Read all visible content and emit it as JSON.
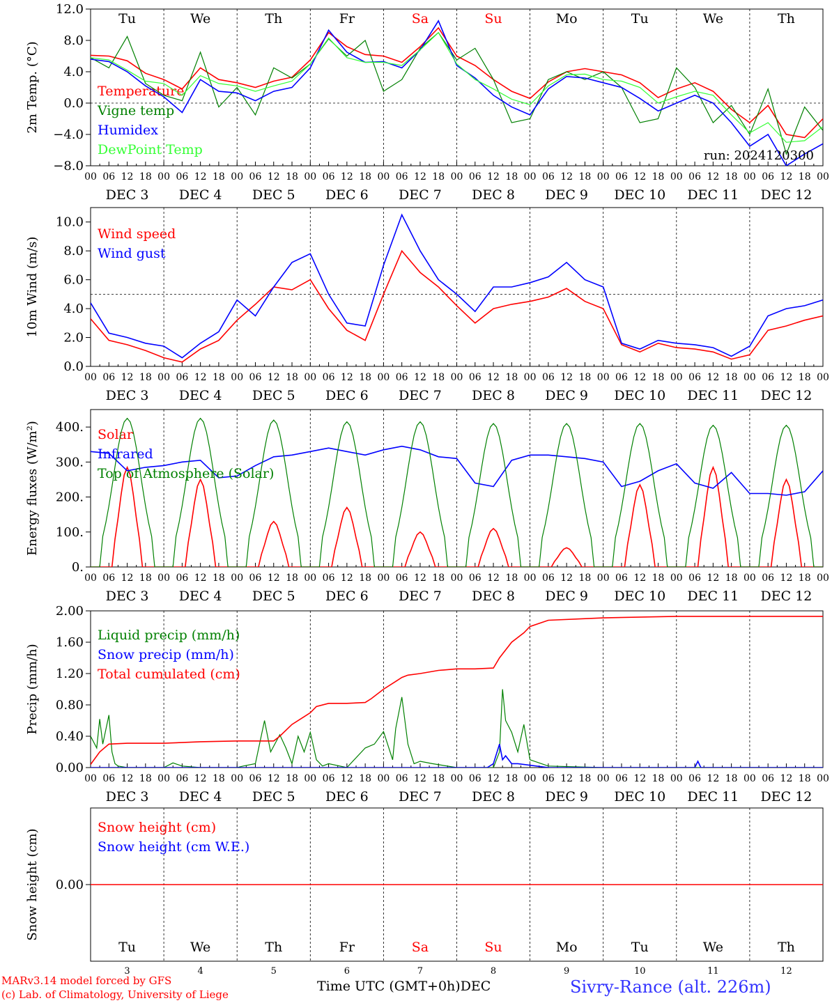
{
  "run_label": "run: 2024120300",
  "x_axis_title": "Time UTC (GMT+0h)",
  "x_axis_title_suffix": "DEC",
  "station": "Sivry-Rance (alt. 226m)",
  "credits": [
    "MARv3.14 model forced by GFS",
    "(c) Lab. of Climatology, University of Liege"
  ],
  "day_names": [
    {
      "label": "Tu",
      "color": "#000000"
    },
    {
      "label": "We",
      "color": "#000000"
    },
    {
      "label": "Th",
      "color": "#000000"
    },
    {
      "label": "Fr",
      "color": "#000000"
    },
    {
      "label": "Sa",
      "color": "#ff0000"
    },
    {
      "label": "Su",
      "color": "#ff0000"
    },
    {
      "label": "Mo",
      "color": "#000000"
    },
    {
      "label": "Tu",
      "color": "#000000"
    },
    {
      "label": "We",
      "color": "#000000"
    },
    {
      "label": "Th",
      "color": "#000000"
    }
  ],
  "date_labels": [
    "DEC  3",
    "DEC  4",
    "DEC  5",
    "DEC  6",
    "DEC  7",
    "DEC  8",
    "DEC  9",
    "DEC 10",
    "DEC 11",
    "DEC 12"
  ],
  "day_numbers": [
    "3",
    "4",
    "5",
    "6",
    "7",
    "8",
    "9",
    "10",
    "11",
    "12"
  ],
  "hour_ticks": [
    "00",
    "06",
    "12",
    "18"
  ],
  "colors": {
    "red": "#ff0000",
    "darkgreen": "#008000",
    "blue": "#0000ff",
    "lightgreen": "#33ff33"
  },
  "chart_data": [
    {
      "id": "temperature",
      "type": "line",
      "ylabel": "2m Temp. (°C)",
      "ylim": [
        -8,
        12
      ],
      "yticks": [
        "12.0",
        "8.0",
        "4.0",
        "0.0",
        "−4.0",
        "−8.0"
      ],
      "ytick_values": [
        12,
        8,
        4,
        0,
        -4,
        -8
      ],
      "x_unit": "hours since Dec 3 00 UTC",
      "x_range": [
        0,
        240
      ],
      "reference_line": 0,
      "series": [
        {
          "name": "Temperature",
          "color": "#ff0000",
          "x": [
            0,
            6,
            12,
            18,
            24,
            30,
            36,
            42,
            48,
            54,
            60,
            66,
            72,
            78,
            84,
            90,
            96,
            102,
            108,
            114,
            120,
            126,
            132,
            138,
            144,
            150,
            156,
            162,
            168,
            174,
            180,
            186,
            192,
            198,
            204,
            210,
            216,
            222,
            228,
            234,
            240
          ],
          "values": [
            6.1,
            6.0,
            5.4,
            3.8,
            3.0,
            1.8,
            4.5,
            3.0,
            2.6,
            2.0,
            2.8,
            3.3,
            5.5,
            9.0,
            7.2,
            6.2,
            6.0,
            5.2,
            7.2,
            9.6,
            6.0,
            4.8,
            3.0,
            1.5,
            0.6,
            2.7,
            4.0,
            4.4,
            4.0,
            3.6,
            2.6,
            0.7,
            1.8,
            2.6,
            1.5,
            -0.8,
            -2.5,
            -0.3,
            -4.0,
            -4.4,
            -2.0
          ]
        },
        {
          "name": "Vigne temp",
          "color": "#008000",
          "x": [
            0,
            6,
            12,
            18,
            24,
            30,
            36,
            42,
            48,
            54,
            60,
            66,
            72,
            78,
            84,
            90,
            96,
            102,
            108,
            114,
            120,
            126,
            132,
            138,
            144,
            150,
            156,
            162,
            168,
            174,
            180,
            186,
            192,
            198,
            204,
            210,
            216,
            222,
            228,
            234,
            240
          ],
          "values": [
            5.8,
            4.5,
            8.5,
            2.5,
            1.0,
            0.3,
            6.5,
            -0.5,
            2.0,
            -1.5,
            4.5,
            3.2,
            5.0,
            8.2,
            6.0,
            8.0,
            1.5,
            3.0,
            7.0,
            9.0,
            5.5,
            7.0,
            3.0,
            -2.5,
            -2.0,
            3.0,
            4.0,
            3.0,
            4.0,
            2.0,
            -2.5,
            -2.0,
            4.5,
            2.0,
            -2.5,
            -0.3,
            -4.0,
            1.8,
            -6.5,
            -0.5,
            -3.5
          ]
        },
        {
          "name": "Humidex",
          "color": "#0000ff",
          "x": [
            0,
            6,
            12,
            18,
            24,
            30,
            36,
            42,
            48,
            54,
            60,
            66,
            72,
            78,
            84,
            90,
            96,
            102,
            108,
            114,
            120,
            126,
            132,
            138,
            144,
            150,
            156,
            162,
            168,
            174,
            180,
            186,
            192,
            198,
            204,
            210,
            216,
            222,
            228,
            234,
            240
          ],
          "values": [
            5.6,
            5.3,
            4.0,
            2.2,
            0.8,
            -1.2,
            3.0,
            1.5,
            1.3,
            0.3,
            1.5,
            2.0,
            4.5,
            9.3,
            6.5,
            5.2,
            5.3,
            4.5,
            6.8,
            10.5,
            4.8,
            3.2,
            1.0,
            -0.5,
            -1.5,
            1.8,
            3.4,
            3.2,
            2.6,
            2.0,
            0.6,
            -1.0,
            0.0,
            1.0,
            0.0,
            -2.5,
            -5.5,
            -4.0,
            -8.0,
            -6.5,
            -5.2
          ]
        },
        {
          "name": "DewPoint Temp",
          "color": "#33ff33",
          "x": [
            0,
            6,
            12,
            18,
            24,
            30,
            36,
            42,
            48,
            54,
            60,
            66,
            72,
            78,
            84,
            90,
            96,
            102,
            108,
            114,
            120,
            126,
            132,
            138,
            144,
            150,
            156,
            162,
            168,
            174,
            180,
            186,
            192,
            198,
            204,
            210,
            216,
            222,
            228,
            234,
            240
          ],
          "values": [
            5.8,
            5.5,
            4.2,
            2.8,
            2.5,
            1.0,
            3.5,
            2.5,
            2.2,
            1.5,
            2.2,
            2.8,
            5.0,
            8.3,
            5.8,
            5.2,
            5.2,
            4.8,
            6.8,
            9.0,
            5.0,
            3.0,
            1.8,
            0.5,
            -0.2,
            2.2,
            3.6,
            3.7,
            3.0,
            2.8,
            2.0,
            0.0,
            0.8,
            1.5,
            1.0,
            -1.5,
            -3.8,
            -2.5,
            -5.0,
            -4.8,
            -3.0
          ]
        }
      ]
    },
    {
      "id": "wind",
      "type": "line",
      "ylabel": "10m Wind (m/s)",
      "ylim": [
        0,
        11
      ],
      "yticks": [
        "10.0",
        "8.0",
        "6.0",
        "4.0",
        "2.0",
        "0.0"
      ],
      "ytick_values": [
        10,
        8,
        6,
        4,
        2,
        0
      ],
      "x_range": [
        0,
        240
      ],
      "reference_line": 5,
      "series": [
        {
          "name": "Wind speed",
          "color": "#ff0000",
          "x": [
            0,
            6,
            12,
            18,
            24,
            30,
            36,
            42,
            48,
            54,
            60,
            66,
            72,
            78,
            84,
            90,
            96,
            102,
            108,
            114,
            120,
            126,
            132,
            138,
            144,
            150,
            156,
            162,
            168,
            174,
            180,
            186,
            192,
            198,
            204,
            210,
            216,
            222,
            228,
            234,
            240
          ],
          "values": [
            3.3,
            1.8,
            1.5,
            1.1,
            0.6,
            0.3,
            1.2,
            1.8,
            3.2,
            4.3,
            5.5,
            5.3,
            6.0,
            4.0,
            2.5,
            1.8,
            5.0,
            8.0,
            6.5,
            5.5,
            4.2,
            3.0,
            4.0,
            4.3,
            4.5,
            4.8,
            5.4,
            4.5,
            4.0,
            1.5,
            1.0,
            1.6,
            1.3,
            1.2,
            1.0,
            0.5,
            0.8,
            2.5,
            2.8,
            3.2,
            3.5
          ]
        },
        {
          "name": "Wind gust",
          "color": "#0000ff",
          "x": [
            0,
            6,
            12,
            18,
            24,
            30,
            36,
            42,
            48,
            54,
            60,
            66,
            72,
            78,
            84,
            90,
            96,
            102,
            108,
            114,
            120,
            126,
            132,
            138,
            144,
            150,
            156,
            162,
            168,
            174,
            180,
            186,
            192,
            198,
            204,
            210,
            216,
            222,
            228,
            234,
            240
          ],
          "values": [
            4.4,
            2.3,
            2.0,
            1.6,
            1.4,
            0.6,
            1.6,
            2.4,
            4.6,
            3.5,
            5.5,
            7.2,
            7.8,
            5.0,
            3.0,
            2.8,
            7.0,
            10.5,
            8.0,
            6.0,
            5.0,
            3.8,
            5.5,
            5.5,
            5.8,
            6.2,
            7.2,
            6.0,
            5.5,
            1.6,
            1.2,
            1.8,
            1.6,
            1.5,
            1.3,
            0.7,
            1.4,
            3.5,
            4.0,
            4.2,
            4.6
          ]
        }
      ]
    },
    {
      "id": "energy",
      "type": "line",
      "ylabel": "Energy fluxes (W/m²)",
      "ylim": [
        0,
        450
      ],
      "yticks": [
        "400.",
        "300.",
        "200.",
        "100.",
        "0."
      ],
      "ytick_values": [
        400,
        300,
        200,
        100,
        0
      ],
      "x_range": [
        0,
        240
      ],
      "series": [
        {
          "name": "Solar",
          "color": "#ff0000",
          "peak_hour": 12,
          "day_peaks": [
            285,
            250,
            130,
            170,
            100,
            110,
            55,
            235,
            285,
            250
          ]
        },
        {
          "name": "Infrared",
          "color": "#0000ff",
          "x": [
            0,
            6,
            12,
            18,
            24,
            30,
            36,
            42,
            48,
            54,
            60,
            66,
            72,
            78,
            84,
            90,
            96,
            102,
            108,
            114,
            120,
            126,
            132,
            138,
            144,
            150,
            156,
            162,
            168,
            174,
            180,
            186,
            192,
            198,
            204,
            210,
            216,
            222,
            228,
            234,
            240
          ],
          "values": [
            330,
            325,
            275,
            285,
            290,
            300,
            305,
            255,
            260,
            290,
            315,
            320,
            330,
            340,
            330,
            320,
            335,
            345,
            335,
            315,
            310,
            240,
            230,
            305,
            320,
            320,
            315,
            310,
            300,
            230,
            245,
            275,
            295,
            240,
            225,
            270,
            210,
            210,
            205,
            215,
            275
          ]
        },
        {
          "name": "Top of Atmosphere (Solar)",
          "color": "#008000",
          "peak_hour": 12,
          "day_peaks": [
            425,
            425,
            420,
            415,
            415,
            410,
            410,
            410,
            405,
            405
          ]
        }
      ]
    },
    {
      "id": "precip",
      "type": "line",
      "ylabel": "Precip (mm/h)",
      "ylim": [
        0,
        2
      ],
      "yticks": [
        "2.00",
        "1.60",
        "1.20",
        "0.80",
        "0.40",
        "0.00"
      ],
      "ytick_values": [
        2.0,
        1.6,
        1.2,
        0.8,
        0.4,
        0.0
      ],
      "x_range": [
        0,
        240
      ],
      "series": [
        {
          "name": "Liquid precip (mm/h)",
          "color": "#008000",
          "x": [
            0,
            2,
            3,
            4,
            6,
            7,
            8,
            9,
            12,
            24,
            27,
            30,
            36,
            48,
            50,
            54,
            57,
            59,
            62,
            64,
            66,
            68,
            70,
            72,
            74,
            76,
            78,
            84,
            90,
            93,
            96,
            99,
            100,
            102,
            104,
            106,
            108,
            112,
            120,
            132,
            134,
            135,
            136,
            138,
            140,
            142,
            144,
            150,
            168,
            192,
            240
          ],
          "values": [
            0.4,
            0.25,
            0.62,
            0.3,
            0.67,
            0.2,
            0.05,
            0.02,
            0.0,
            0.0,
            0.06,
            0.02,
            0.0,
            0.0,
            0.02,
            0.05,
            0.6,
            0.2,
            0.42,
            0.25,
            0.05,
            0.4,
            0.2,
            0.45,
            0.1,
            0.02,
            0.05,
            0.0,
            0.25,
            0.3,
            0.46,
            0.1,
            0.5,
            0.9,
            0.3,
            0.05,
            0.08,
            0.05,
            0.0,
            0.0,
            0.2,
            1.0,
            0.6,
            0.45,
            0.2,
            0.55,
            0.1,
            0.02,
            0.0,
            0.0,
            0.0
          ]
        },
        {
          "name": "Snow precip (mm/h)",
          "color": "#0000ff",
          "x": [
            0,
            130,
            132,
            134,
            135,
            136,
            138,
            140,
            150,
            198,
            199,
            200,
            240
          ],
          "values": [
            0.0,
            0.0,
            0.05,
            0.3,
            0.1,
            0.15,
            0.05,
            0.05,
            0.0,
            0.0,
            0.08,
            0.0,
            0.0
          ]
        },
        {
          "name": "Total cumulated (cm)",
          "color": "#ff0000",
          "x": [
            0,
            3,
            6,
            12,
            24,
            36,
            48,
            60,
            62,
            66,
            70,
            72,
            74,
            78,
            84,
            90,
            92,
            96,
            100,
            102,
            104,
            108,
            114,
            120,
            126,
            132,
            134,
            138,
            142,
            144,
            150,
            168,
            192,
            240
          ],
          "values": [
            0.04,
            0.2,
            0.3,
            0.31,
            0.31,
            0.33,
            0.34,
            0.34,
            0.4,
            0.55,
            0.65,
            0.7,
            0.78,
            0.82,
            0.82,
            0.83,
            0.88,
            1.0,
            1.1,
            1.15,
            1.18,
            1.2,
            1.24,
            1.26,
            1.26,
            1.27,
            1.4,
            1.6,
            1.72,
            1.8,
            1.88,
            1.91,
            1.93,
            1.93
          ]
        }
      ]
    },
    {
      "id": "snow",
      "type": "line",
      "ylabel": "Snow height (cm)",
      "yticks": [
        "0.00"
      ],
      "ytick_values": [
        0
      ],
      "ylim": [
        -1,
        1
      ],
      "x_range": [
        0,
        240
      ],
      "series": [
        {
          "name": "Snow height (cm)",
          "color": "#ff0000",
          "x": [
            0,
            240
          ],
          "values": [
            0,
            0
          ]
        },
        {
          "name": "Snow height (cm W.E.)",
          "color": "#0000ff",
          "x": [],
          "values": []
        }
      ]
    }
  ]
}
